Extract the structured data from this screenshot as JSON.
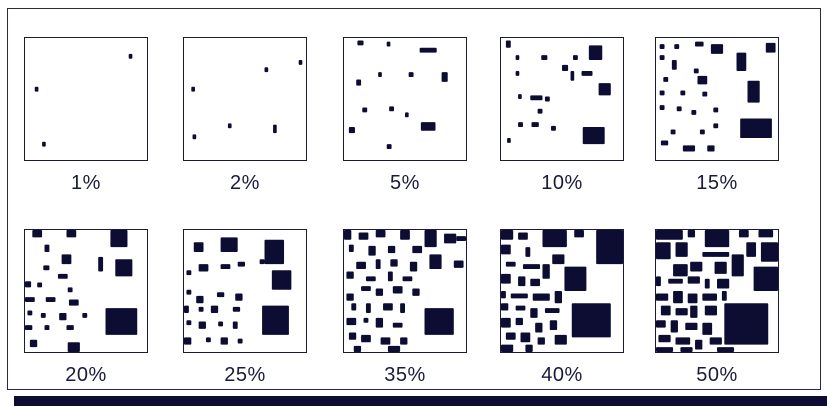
{
  "panels": [
    {
      "label": "1%",
      "density": 0.01
    },
    {
      "label": "2%",
      "density": 0.02
    },
    {
      "label": "5%",
      "density": 0.05
    },
    {
      "label": "10%",
      "density": 0.1
    },
    {
      "label": "15%",
      "density": 0.15
    },
    {
      "label": "20%",
      "density": 0.2
    },
    {
      "label": "25%",
      "density": 0.25
    },
    {
      "label": "35%",
      "density": 0.35
    },
    {
      "label": "40%",
      "density": 0.4
    },
    {
      "label": "50%",
      "density": 0.5
    }
  ],
  "colors": {
    "fill": "#0d0d33",
    "border": "#1a1a3a",
    "background": "#ffffff"
  }
}
